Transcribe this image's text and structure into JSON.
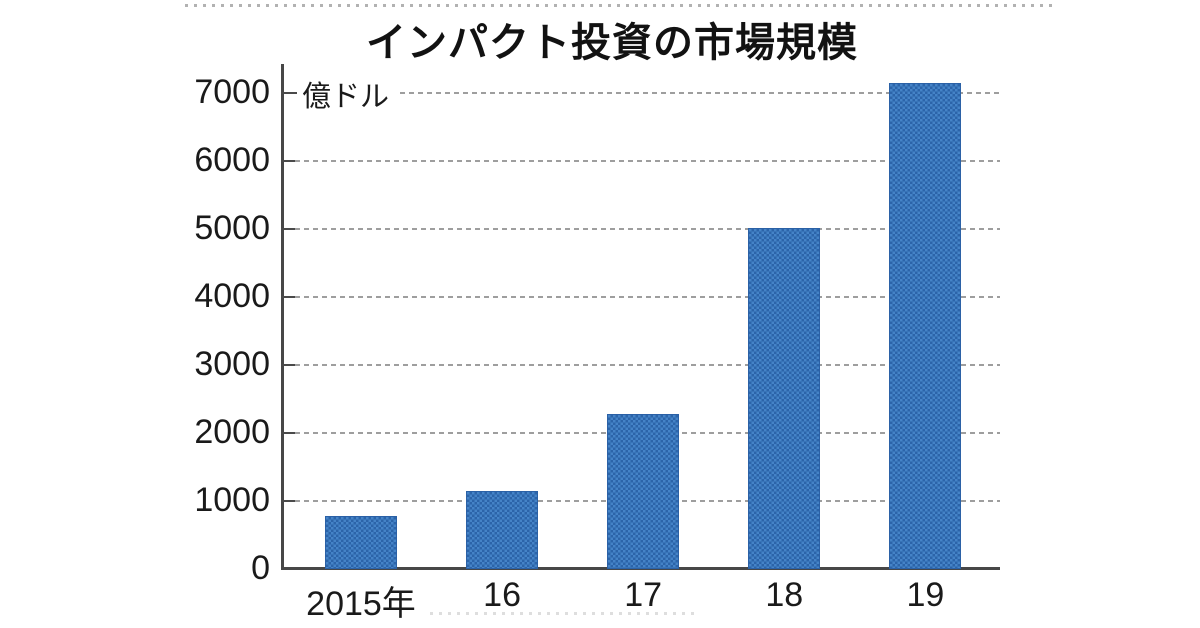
{
  "page": {
    "background": "#ffffff"
  },
  "chart_data": {
    "type": "bar",
    "title": "インパクト投資の市場規模",
    "unit_label": "億ドル",
    "xlabel": "",
    "ylabel": "億ドル",
    "categories": [
      "2015年",
      "16",
      "17",
      "18",
      "19"
    ],
    "values": [
      774,
      1140,
      2280,
      5020,
      7150
    ],
    "ylim": [
      0,
      7440
    ],
    "yticks": [
      0,
      1000,
      2000,
      3000,
      4000,
      5000,
      6000,
      7000
    ],
    "grid": "horizontal-dashed",
    "legend": "none",
    "colors": {
      "bar_dark": "#2c64a9",
      "bar_light": "#4583c7",
      "bar_border": "#2b61a6",
      "axis": "#474747",
      "gridline": "#9e9e9e",
      "text": "#1a1a1a",
      "title_text": "#121212",
      "background": "#ffffff"
    }
  }
}
